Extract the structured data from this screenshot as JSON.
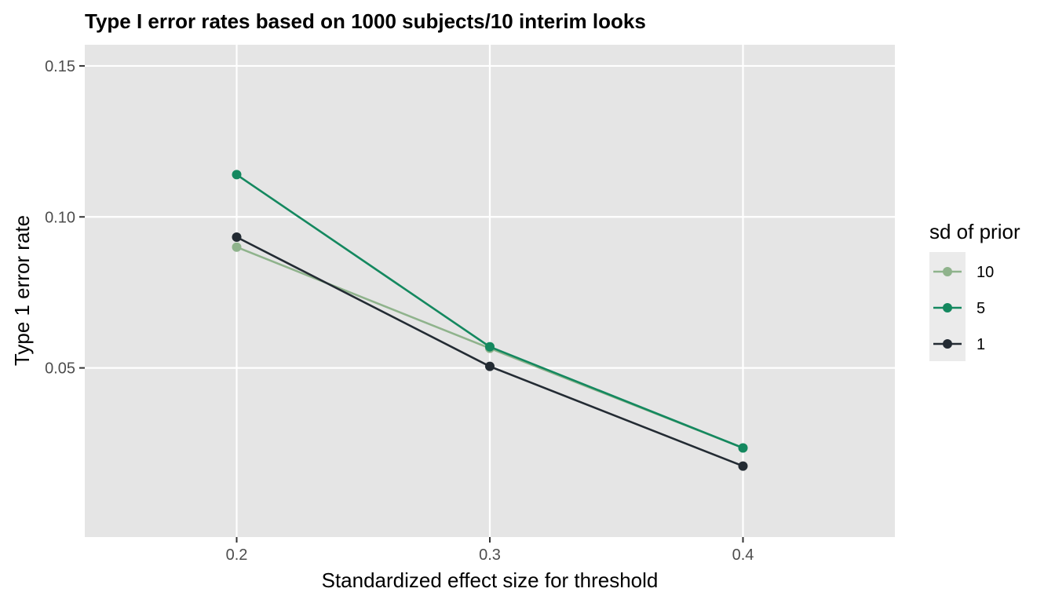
{
  "chart_data": {
    "type": "line",
    "title": "Type I error rates based on 1000 subjects/10 interim looks",
    "xlabel": "Standardized effect size for threshold",
    "ylabel": "Type 1 error rate",
    "x": [
      0.2,
      0.3,
      0.4
    ],
    "x_tick_labels": [
      "0.2",
      "0.3",
      "0.4"
    ],
    "y_tick_values": [
      0.05,
      0.1,
      0.15
    ],
    "y_tick_labels": [
      "0.05",
      "0.10",
      "0.15"
    ],
    "xlim": [
      0.14,
      0.46
    ],
    "ylim": [
      -0.006,
      0.157
    ],
    "grid": true,
    "legend": {
      "title": "sd of prior",
      "position": "right"
    },
    "series": [
      {
        "name": "10",
        "color": "#8fb38c",
        "values": [
          0.09,
          0.0565,
          0.0235
        ]
      },
      {
        "name": "5",
        "color": "#14885f",
        "values": [
          0.114,
          0.057,
          0.0235
        ]
      },
      {
        "name": "1",
        "color": "#232b33",
        "values": [
          0.0933,
          0.0505,
          0.0175
        ]
      }
    ]
  }
}
